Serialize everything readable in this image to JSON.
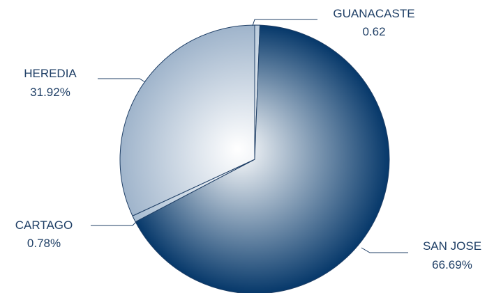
{
  "chart_data": {
    "type": "pie",
    "slices": [
      {
        "name": "GUANACASTE",
        "value": 0.62,
        "value_label": "0.62",
        "color": "#bcccdc"
      },
      {
        "name": "SAN JOSE",
        "value": 66.69,
        "value_label": "66.69%",
        "color": "#06386a"
      },
      {
        "name": "CARTAGO",
        "value": 0.78,
        "value_label": "0.78%",
        "color": "#a8bdd2"
      },
      {
        "name": "HEREDIA",
        "value": 31.92,
        "value_label": "31.92%",
        "color": "#9fb4cb"
      }
    ],
    "start_angle": "12 o'clock",
    "direction": "clockwise",
    "label_color": "#1f3f66",
    "leader_line_color": "#1f3f66",
    "gradient": "radial, light center to slice color at edge"
  }
}
